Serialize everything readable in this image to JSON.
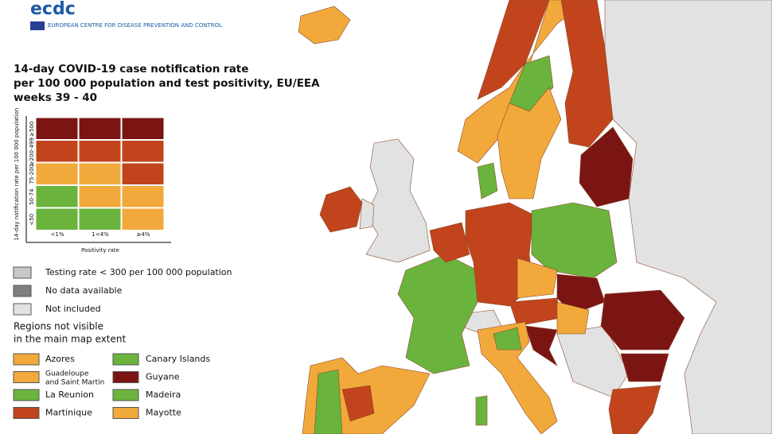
{
  "logo": {
    "name": "ecdc",
    "subtitle": "EUROPEAN CENTRE FOR DISEASE PREVENTION AND CONTROL"
  },
  "title": [
    "14-day COVID-19 case notification rate",
    "per 100 000 population and test positivity, EU/EEA",
    "weeks 39 - 40"
  ],
  "matrix": {
    "y_label": "14-day notification rate per 100 000 population",
    "x_label": "Positivity rate",
    "rows": [
      "≥500",
      "≥200-499",
      "75-200",
      "50-74",
      "<50"
    ],
    "columns": [
      "<1%",
      "1<4%",
      "≥4%"
    ],
    "colors": [
      [
        "#7b1513",
        "#7b1513",
        "#7b1513"
      ],
      [
        "#c1441d",
        "#c1441d",
        "#c1441d"
      ],
      [
        "#f2a93b",
        "#f2a93b",
        "#c1441d"
      ],
      [
        "#6ab33c",
        "#f2a93b",
        "#f2a93b"
      ],
      [
        "#6ab33c",
        "#6ab33c",
        "#f2a93b"
      ]
    ]
  },
  "legend": [
    {
      "label": "Testing rate < 300 per 100 000 population",
      "color": "#c8c8c8"
    },
    {
      "label": "No data available",
      "color": "#808080"
    },
    {
      "label": "Not included",
      "color": "#e2e2e2"
    }
  ],
  "regions_heading": [
    "Regions not visible",
    "in the main map extent"
  ],
  "regions": [
    {
      "label": "Azores",
      "color": "#f2a93b"
    },
    {
      "label": "Canary Islands",
      "color": "#6ab33c"
    },
    {
      "label": "Guadeloupe and Saint Martin",
      "color": "#f2a93b"
    },
    {
      "label": "Guyane",
      "color": "#7b1513"
    },
    {
      "label": "La Reunion",
      "color": "#6ab33c"
    },
    {
      "label": "Madeira",
      "color": "#6ab33c"
    },
    {
      "label": "Martinique",
      "color": "#c1441d"
    },
    {
      "label": "Mayotte",
      "color": "#f2a93b"
    }
  ]
}
